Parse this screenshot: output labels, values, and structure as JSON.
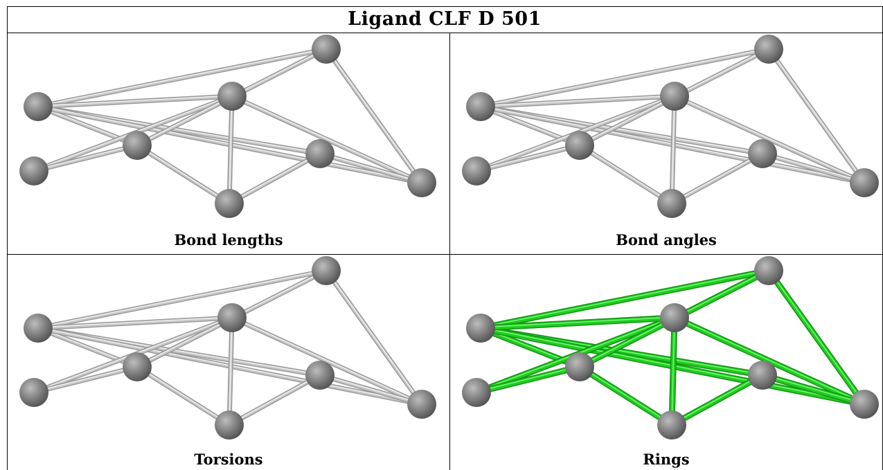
{
  "title": "Ligand CLF D 501",
  "panels": [
    {
      "caption": "Bond lengths",
      "highlight": false
    },
    {
      "caption": "Bond angles",
      "highlight": false
    },
    {
      "caption": "Torsions",
      "highlight": false
    },
    {
      "caption": "Rings",
      "highlight": true
    }
  ],
  "colors": {
    "bond_default": "#c9c9c9",
    "bond_highlight": "#22cc22",
    "atom": "#7a7a7a",
    "border": "#000000"
  }
}
